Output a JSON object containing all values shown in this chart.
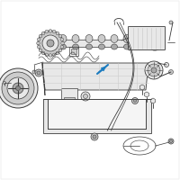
{
  "bg_color": "#ffffff",
  "line_color": "#3a3a3a",
  "highlight_color": "#1a7bbf",
  "light_gray": "#cccccc",
  "mid_gray": "#aaaaaa",
  "dark_gray": "#888888",
  "very_light": "#e8e8e8"
}
